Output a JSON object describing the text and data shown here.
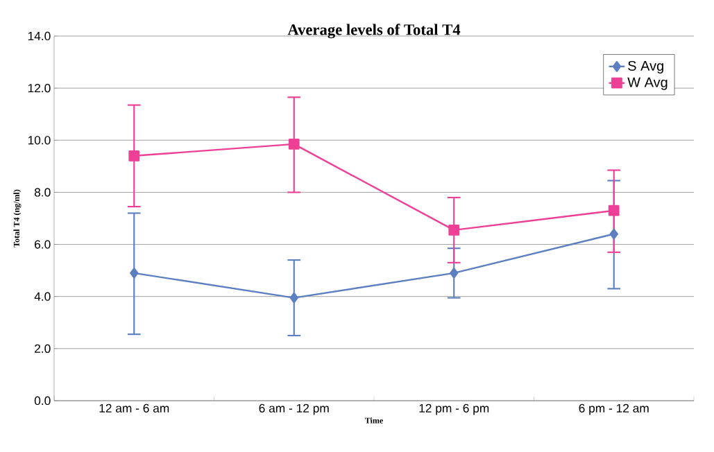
{
  "chart_data": {
    "type": "line",
    "title": "Average levels of Total T4",
    "xlabel": "Time",
    "ylabel": "Total T4 (ng/ml)",
    "categories": [
      "12 am - 6 am",
      "6 am - 12 pm",
      "12 pm - 6 pm",
      "6 pm - 12 am"
    ],
    "series": [
      {
        "name": "S Avg",
        "color": "#5b7fc1",
        "marker": "diamond",
        "values": [
          4.9,
          3.95,
          4.9,
          6.4
        ],
        "errors": [
          [
            2.55,
            7.2
          ],
          [
            2.5,
            5.4
          ],
          [
            3.95,
            5.85
          ],
          [
            4.3,
            8.45
          ]
        ]
      },
      {
        "name": "W Avg",
        "color": "#ee3f97",
        "marker": "square",
        "values": [
          9.4,
          9.85,
          6.55,
          7.3
        ],
        "errors": [
          [
            7.45,
            11.35
          ],
          [
            8.0,
            11.65
          ],
          [
            5.3,
            7.8
          ],
          [
            5.7,
            8.85
          ]
        ]
      }
    ],
    "ylim": [
      0,
      14
    ],
    "yticks": [
      {
        "value": 0,
        "label": "0.0"
      },
      {
        "value": 2,
        "label": "2.0"
      },
      {
        "value": 4,
        "label": "4.0"
      },
      {
        "value": 6,
        "label": "6.0"
      },
      {
        "value": 8,
        "label": "8.0"
      },
      {
        "value": 10,
        "label": "10.0"
      },
      {
        "value": 12,
        "label": "12.0"
      },
      {
        "value": 14,
        "label": "14.0"
      }
    ],
    "grid": "y",
    "legend": "top right",
    "line_style": "solid"
  }
}
